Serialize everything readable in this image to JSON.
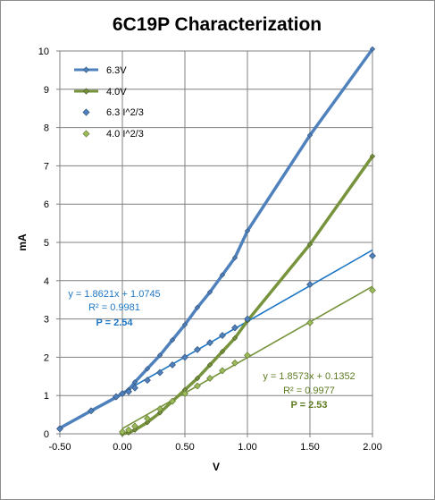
{
  "chart_data": {
    "type": "line",
    "title": "6C19P Characterization",
    "xlabel": "V",
    "ylabel": "mA",
    "xlim": [
      -0.5,
      2.0
    ],
    "ylim": [
      0,
      10
    ],
    "x_ticks": [
      -0.5,
      0.0,
      0.5,
      1.0,
      1.5,
      2.0
    ],
    "x_tick_labels": [
      "-0.50",
      "0.00",
      "0.50",
      "1.00",
      "1.50",
      "2.00"
    ],
    "y_ticks": [
      0,
      1,
      2,
      3,
      4,
      5,
      6,
      7,
      8,
      9,
      10
    ],
    "grid": true,
    "legend_position": "top-left",
    "series": [
      {
        "name": "6.3V",
        "kind": "line",
        "color": "#4F81BD",
        "x": [
          -0.5,
          -0.25,
          -0.05,
          0.0,
          0.05,
          0.1,
          0.2,
          0.3,
          0.4,
          0.5,
          0.6,
          0.7,
          0.8,
          0.9,
          1.0,
          1.5,
          2.0
        ],
        "y": [
          0.15,
          0.6,
          0.95,
          1.05,
          1.15,
          1.35,
          1.7,
          2.05,
          2.45,
          2.85,
          3.3,
          3.7,
          4.15,
          4.6,
          5.3,
          7.8,
          10.05
        ]
      },
      {
        "name": "4.0V",
        "kind": "line",
        "color": "#77933C",
        "x": [
          0.0,
          0.05,
          0.1,
          0.2,
          0.3,
          0.4,
          0.5,
          0.6,
          0.7,
          0.8,
          0.9,
          1.0,
          1.5,
          2.0
        ],
        "y": [
          0.0,
          0.03,
          0.1,
          0.3,
          0.55,
          0.85,
          1.15,
          1.45,
          1.8,
          2.15,
          2.5,
          2.95,
          4.95,
          7.25
        ]
      },
      {
        "name": "6.3 I^2/3",
        "kind": "scatter",
        "color": "#4F81BD",
        "x": [
          -0.5,
          -0.25,
          -0.05,
          0.0,
          0.05,
          0.1,
          0.2,
          0.3,
          0.4,
          0.5,
          0.6,
          0.7,
          0.8,
          0.9,
          1.0,
          1.5,
          2.0
        ],
        "y": [
          0.13,
          0.6,
          0.97,
          1.05,
          1.1,
          1.2,
          1.4,
          1.6,
          1.8,
          2.0,
          2.2,
          2.38,
          2.57,
          2.77,
          3.0,
          3.9,
          4.65
        ]
      },
      {
        "name": "4.0 I^2/3",
        "kind": "scatter",
        "color": "#9BBB59",
        "x": [
          0.0,
          0.05,
          0.1,
          0.2,
          0.3,
          0.4,
          0.5,
          0.6,
          0.7,
          0.8,
          0.9,
          1.0,
          1.5,
          2.0
        ],
        "y": [
          0.05,
          0.1,
          0.2,
          0.4,
          0.65,
          0.85,
          1.05,
          1.25,
          1.45,
          1.65,
          1.85,
          2.05,
          2.9,
          3.75
        ]
      }
    ],
    "trendlines": [
      {
        "series": "6.3 I^2/3",
        "color": "#1F77C4",
        "slope": 1.8621,
        "intercept": 1.0745,
        "x_range": [
          -0.5,
          2.0
        ],
        "equation": "y = 1.8621x + 1.0745",
        "r2": "R² = 0.9981",
        "p": "P = 2.54"
      },
      {
        "series": "4.0 I^2/3",
        "color": "#77933C",
        "slope": 1.8573,
        "intercept": 0.1352,
        "x_range": [
          0.0,
          2.0
        ],
        "equation": "y = 1.8573x + 0.1352",
        "r2": "R² = 0.9977",
        "p": "P = 2.53"
      }
    ]
  }
}
